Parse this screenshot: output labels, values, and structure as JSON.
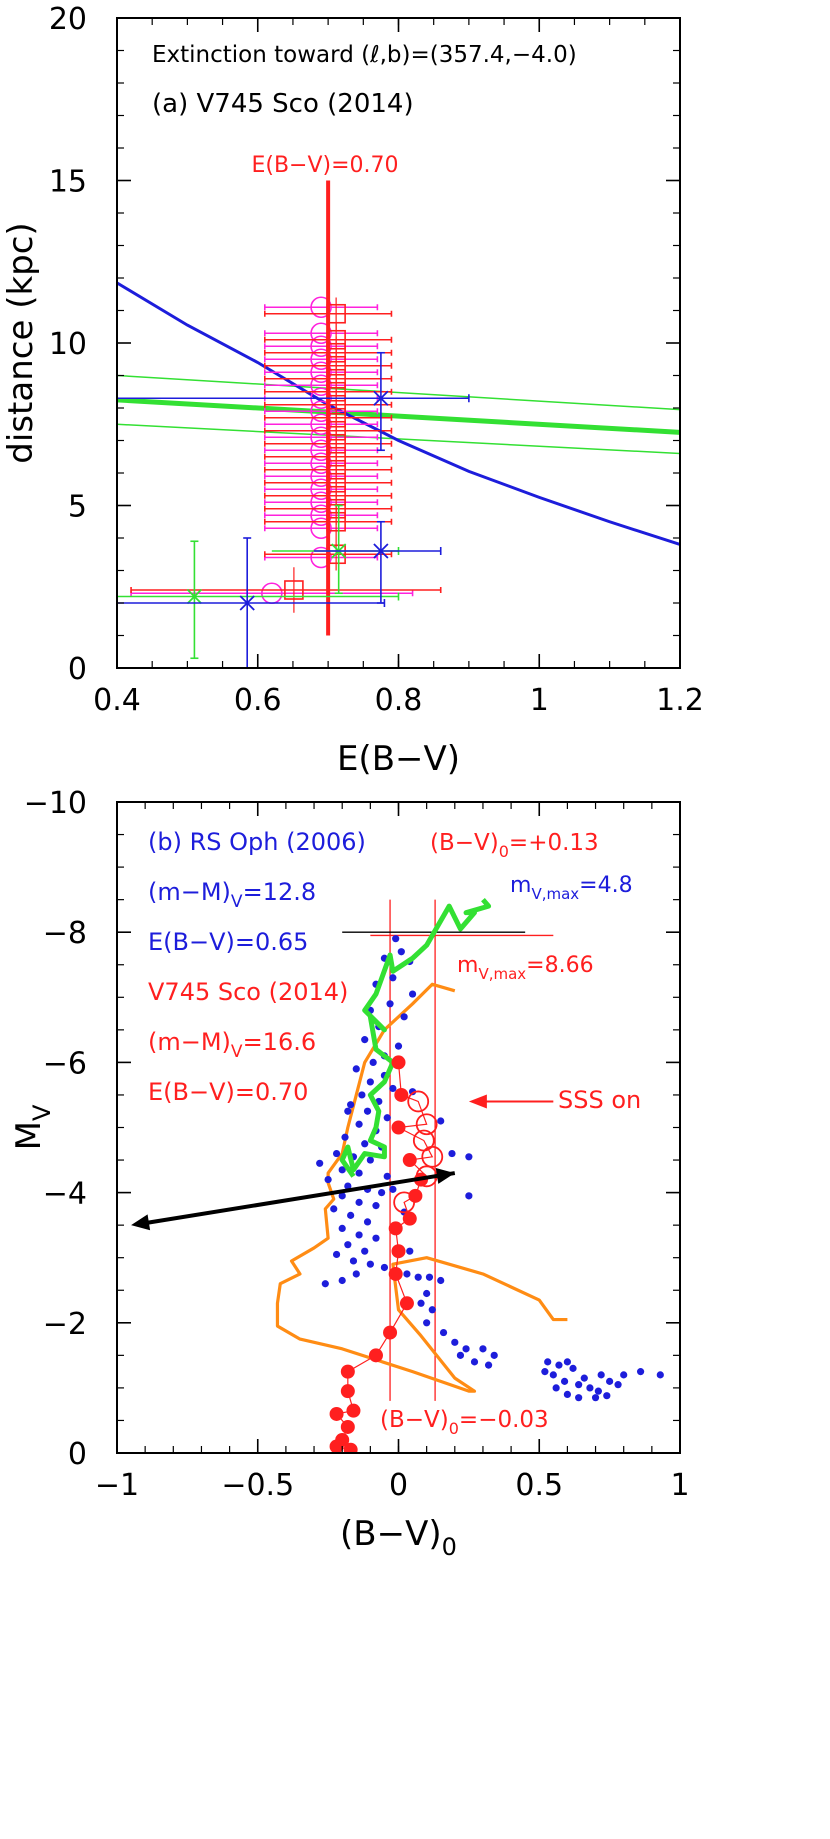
{
  "colors": {
    "red": "#ff1f1f",
    "blue": "#1d1ddb",
    "green": "#33e033",
    "magenta": "#ff22dd",
    "orange": "#ff8c14",
    "black": "#000000"
  },
  "chart_data": [
    {
      "type": "scatter",
      "panel": "top",
      "title": "Extinction toward (ℓ,b)=(357.4,−4.0)",
      "subtitle": "(a) V745 Sco (2014)",
      "xlabel": "E(B−V)",
      "ylabel": "distance (kpc)",
      "xlim": [
        0.4,
        1.2
      ],
      "ylim": [
        0,
        20
      ],
      "xticks": [
        "0.4",
        "0.6",
        "0.8",
        "1",
        "1.2"
      ],
      "xtick_values": [
        0.4,
        0.6,
        0.8,
        1.0,
        1.2
      ],
      "yticks": [
        "0",
        "5",
        "10",
        "15",
        "20"
      ],
      "ytick_values": [
        0,
        5,
        10,
        15,
        20
      ],
      "annotations": {
        "ebv_label": "E(B−V)=0.70"
      },
      "vertical_line": {
        "x": 0.7,
        "y": [
          1.0,
          15.0
        ],
        "color": "red"
      },
      "blue_curve": [
        [
          0.4,
          11.85
        ],
        [
          0.5,
          10.55
        ],
        [
          0.6,
          9.4
        ],
        [
          0.7,
          8.1
        ],
        [
          0.8,
          7.0
        ],
        [
          0.9,
          6.05
        ],
        [
          1.0,
          5.25
        ],
        [
          1.1,
          4.5
        ],
        [
          1.2,
          3.8
        ]
      ],
      "green_lines": [
        {
          "role": "center",
          "y_at_x0": 8.25,
          "y_at_x1": 7.25
        },
        {
          "role": "upper",
          "y_at_x0": 9.0,
          "y_at_x1": 7.95
        },
        {
          "role": "lower",
          "y_at_x0": 7.5,
          "y_at_x1": 6.6
        }
      ],
      "magenta_circles": [
        {
          "x": 0.69,
          "y": 11.1,
          "xerr": 0.08
        },
        {
          "x": 0.69,
          "y": 10.3,
          "xerr": 0.08
        },
        {
          "x": 0.69,
          "y": 9.9,
          "xerr": 0.08
        },
        {
          "x": 0.69,
          "y": 9.5,
          "xerr": 0.08
        },
        {
          "x": 0.69,
          "y": 9.1,
          "xerr": 0.08
        },
        {
          "x": 0.69,
          "y": 8.7,
          "xerr": 0.08
        },
        {
          "x": 0.69,
          "y": 8.3,
          "xerr": 0.08
        },
        {
          "x": 0.69,
          "y": 7.9,
          "xerr": 0.08
        },
        {
          "x": 0.69,
          "y": 7.5,
          "xerr": 0.08
        },
        {
          "x": 0.69,
          "y": 7.1,
          "xerr": 0.08
        },
        {
          "x": 0.69,
          "y": 6.7,
          "xerr": 0.08
        },
        {
          "x": 0.69,
          "y": 6.3,
          "xerr": 0.08
        },
        {
          "x": 0.69,
          "y": 5.9,
          "xerr": 0.08
        },
        {
          "x": 0.69,
          "y": 5.5,
          "xerr": 0.08
        },
        {
          "x": 0.69,
          "y": 5.1,
          "xerr": 0.08
        },
        {
          "x": 0.69,
          "y": 4.7,
          "xerr": 0.08
        },
        {
          "x": 0.69,
          "y": 4.3,
          "xerr": 0.08
        },
        {
          "x": 0.69,
          "y": 3.4,
          "xerr": 0.08
        },
        {
          "x": 0.62,
          "y": 2.3,
          "xerr": 0.2
        }
      ],
      "red_squares": [
        {
          "x": 0.7,
          "y": 10.9,
          "xerr": 0.09,
          "yerr": 0.5
        },
        {
          "x": 0.7,
          "y": 10.1,
          "xerr": 0.09,
          "yerr": 0.5
        },
        {
          "x": 0.7,
          "y": 9.7,
          "xerr": 0.09,
          "yerr": 0.5
        },
        {
          "x": 0.7,
          "y": 9.3,
          "xerr": 0.09,
          "yerr": 0.5
        },
        {
          "x": 0.7,
          "y": 8.9,
          "xerr": 0.09,
          "yerr": 0.5
        },
        {
          "x": 0.7,
          "y": 8.5,
          "xerr": 0.09,
          "yerr": 0.5
        },
        {
          "x": 0.7,
          "y": 8.1,
          "xerr": 0.09,
          "yerr": 0.5
        },
        {
          "x": 0.7,
          "y": 7.7,
          "xerr": 0.09,
          "yerr": 0.5
        },
        {
          "x": 0.7,
          "y": 7.3,
          "xerr": 0.09,
          "yerr": 0.5
        },
        {
          "x": 0.7,
          "y": 6.9,
          "xerr": 0.09,
          "yerr": 0.5
        },
        {
          "x": 0.7,
          "y": 6.5,
          "xerr": 0.09,
          "yerr": 0.5
        },
        {
          "x": 0.7,
          "y": 6.1,
          "xerr": 0.09,
          "yerr": 0.5
        },
        {
          "x": 0.7,
          "y": 5.7,
          "xerr": 0.09,
          "yerr": 0.5
        },
        {
          "x": 0.7,
          "y": 5.3,
          "xerr": 0.09,
          "yerr": 0.5
        },
        {
          "x": 0.7,
          "y": 4.9,
          "xerr": 0.09,
          "yerr": 0.5
        },
        {
          "x": 0.7,
          "y": 4.5,
          "xerr": 0.09,
          "yerr": 0.5
        },
        {
          "x": 0.7,
          "y": 3.5,
          "xerr": 0.09,
          "yerr": 0.5
        },
        {
          "x": 0.64,
          "y": 2.4,
          "xerr": 0.22,
          "yerr": 0.7
        }
      ],
      "blue_crosses": [
        {
          "x": 0.775,
          "y": 8.3,
          "xlo": 0.4,
          "xhi": 0.9,
          "ylo": 6.7,
          "yhi": 9.7
        },
        {
          "x": 0.775,
          "y": 3.6,
          "xlo": 0.68,
          "xhi": 0.86,
          "ylo": 2.0,
          "yhi": 4.5
        },
        {
          "x": 0.585,
          "y": 2.0,
          "xlo": 0.4,
          "xhi": 0.78,
          "ylo": 0.0,
          "yhi": 4.0
        }
      ],
      "green_crosses": [
        {
          "x": 0.715,
          "y": 3.6,
          "xlo": 0.62,
          "xhi": 0.8,
          "ylo": 2.3,
          "yhi": 5.0
        },
        {
          "x": 0.51,
          "y": 2.2,
          "xlo": 0.4,
          "xhi": 0.8,
          "ylo": 0.3,
          "yhi": 3.9
        }
      ]
    },
    {
      "type": "scatter",
      "panel": "bottom",
      "xlabel": "(B−V)",
      "xlabel_sub": "0",
      "ylabel": "M",
      "ylabel_sub": "V",
      "xlim": [
        -1,
        1
      ],
      "ylim": [
        0,
        -10
      ],
      "xticks": [
        "−1",
        "−0.5",
        "0",
        "0.5",
        "1"
      ],
      "xtick_values": [
        -1,
        -0.5,
        0,
        0.5,
        1
      ],
      "yticks": [
        "−10",
        "−8",
        "−6",
        "−4",
        "−2",
        "0"
      ],
      "ytick_values": [
        -10,
        -8,
        -6,
        -4,
        -2,
        0
      ],
      "annotations": {
        "rsoph_title": "(b) RS Oph (2006)",
        "rsoph_dm": "(m−M)",
        "rsoph_dm_sub": "V",
        "rsoph_dm_val": "=12.8",
        "rsoph_ebv": "E(B−V)=0.65",
        "v745_title": "V745 Sco (2014)",
        "v745_dm": "(m−M)",
        "v745_dm_sub": "V",
        "v745_dm_val": "=16.6",
        "v745_ebv": "E(B−V)=0.70",
        "bv_top": "(B−V)",
        "bv_top_sub": "0",
        "bv_top_val": "=+0.13",
        "bv_bot": "(B−V)",
        "bv_bot_sub": "0",
        "bv_bot_val": "=−0.03",
        "mvmax_blue": "m",
        "mvmax_blue_sub": "V,max",
        "mvmax_blue_val": "=4.8",
        "mvmax_red": "m",
        "mvmax_red_sub": "V,max",
        "mvmax_red_val": "=8.66",
        "sss": "SSS on"
      },
      "vlines": [
        -0.03,
        0.13
      ],
      "hlines": [
        {
          "y": -8.0,
          "x": [
            -0.2,
            0.45
          ],
          "color": "black"
        },
        {
          "y": -7.95,
          "x": [
            -0.1,
            0.55
          ],
          "color": "red"
        }
      ],
      "arrow": {
        "from": [
          0.2,
          -4.3
        ],
        "to": [
          -0.95,
          -3.5
        ]
      },
      "sss_arrow": {
        "from": [
          0.55,
          -5.4
        ],
        "to": [
          0.25,
          -5.4
        ]
      },
      "orange_track": [
        [
          0.2,
          -7.1
        ],
        [
          0.12,
          -7.2
        ],
        [
          0.05,
          -6.9
        ],
        [
          -0.05,
          -6.5
        ],
        [
          -0.12,
          -6.0
        ],
        [
          -0.15,
          -5.5
        ],
        [
          -0.18,
          -5.0
        ],
        [
          -0.2,
          -4.6
        ],
        [
          -0.25,
          -4.3
        ],
        [
          -0.25,
          -4.15
        ],
        [
          -0.23,
          -3.9
        ],
        [
          -0.26,
          -3.75
        ],
        [
          -0.25,
          -3.3
        ],
        [
          -0.3,
          -3.15
        ],
        [
          -0.38,
          -2.95
        ],
        [
          -0.35,
          -2.75
        ],
        [
          -0.42,
          -2.6
        ],
        [
          -0.43,
          -2.3
        ],
        [
          -0.43,
          -1.95
        ],
        [
          -0.35,
          -1.75
        ],
        [
          -0.2,
          -1.6
        ],
        [
          0.05,
          -1.25
        ],
        [
          0.25,
          -0.95
        ],
        [
          0.27,
          -0.95
        ],
        [
          0.2,
          -1.15
        ],
        [
          0.08,
          -1.8
        ],
        [
          0.0,
          -2.2
        ],
        [
          -0.02,
          -2.9
        ],
        [
          0.1,
          -3.0
        ],
        [
          0.3,
          -2.75
        ],
        [
          0.5,
          -2.35
        ],
        [
          0.55,
          -2.05
        ],
        [
          0.6,
          -2.05
        ]
      ],
      "green_track": [
        [
          0.3,
          -8.5
        ],
        [
          0.32,
          -8.4
        ],
        [
          0.24,
          -8.3
        ],
        [
          0.27,
          -8.3
        ],
        [
          0.22,
          -8.05
        ],
        [
          0.18,
          -8.4
        ],
        [
          0.1,
          -7.8
        ],
        [
          0.05,
          -7.6
        ],
        [
          -0.02,
          -7.4
        ],
        [
          -0.03,
          -7.65
        ],
        [
          -0.08,
          -7.05
        ],
        [
          -0.12,
          -6.8
        ],
        [
          -0.05,
          -6.5
        ],
        [
          -0.1,
          -6.7
        ],
        [
          -0.08,
          -6.2
        ],
        [
          -0.02,
          -6.0
        ],
        [
          -0.05,
          -5.7
        ],
        [
          -0.1,
          -5.5
        ],
        [
          -0.07,
          -5.25
        ],
        [
          -0.08,
          -5.0
        ],
        [
          -0.1,
          -4.8
        ],
        [
          -0.05,
          -4.7
        ],
        [
          -0.05,
          -4.55
        ],
        [
          -0.12,
          -4.6
        ],
        [
          -0.16,
          -4.35
        ],
        [
          -0.18,
          -4.7
        ],
        [
          -0.2,
          -4.5
        ],
        [
          -0.16,
          -4.25
        ]
      ],
      "blue_points": [
        [
          -0.01,
          -7.9
        ],
        [
          0.01,
          -7.7
        ],
        [
          -0.05,
          -7.6
        ],
        [
          0.04,
          -7.55
        ],
        [
          -0.02,
          -7.3
        ],
        [
          -0.08,
          -7.2
        ],
        [
          0.05,
          -7.05
        ],
        [
          -0.03,
          -6.9
        ],
        [
          -0.1,
          -6.8
        ],
        [
          0.02,
          -6.7
        ],
        [
          -0.07,
          -6.55
        ],
        [
          -0.12,
          -6.35
        ],
        [
          0.0,
          -6.25
        ],
        [
          -0.05,
          -6.1
        ],
        [
          -0.09,
          -6.0
        ],
        [
          -0.15,
          -5.9
        ],
        [
          -0.05,
          -5.8
        ],
        [
          -0.1,
          -5.7
        ],
        [
          -0.02,
          -5.6
        ],
        [
          -0.13,
          -5.5
        ],
        [
          -0.07,
          -5.4
        ],
        [
          -0.17,
          -5.35
        ],
        [
          -0.11,
          -5.25
        ],
        [
          -0.04,
          -5.15
        ],
        [
          -0.14,
          -5.05
        ],
        [
          -0.08,
          -4.95
        ],
        [
          -0.19,
          -4.85
        ],
        [
          -0.12,
          -4.75
        ],
        [
          -0.06,
          -4.7
        ],
        [
          -0.22,
          -4.6
        ],
        [
          -0.16,
          -4.55
        ],
        [
          -0.1,
          -4.5
        ],
        [
          -0.28,
          -4.45
        ],
        [
          -0.2,
          -4.35
        ],
        [
          -0.14,
          -4.3
        ],
        [
          -0.04,
          -4.25
        ],
        [
          -0.25,
          -4.2
        ],
        [
          -0.18,
          -4.1
        ],
        [
          -0.11,
          -4.05
        ],
        [
          -0.06,
          -4.0
        ],
        [
          -0.2,
          -3.95
        ],
        [
          -0.14,
          -3.85
        ],
        [
          -0.08,
          -3.8
        ],
        [
          -0.23,
          -3.75
        ],
        [
          -0.17,
          -3.65
        ],
        [
          -0.11,
          -3.55
        ],
        [
          -0.2,
          -3.45
        ],
        [
          -0.14,
          -3.35
        ],
        [
          -0.08,
          -3.3
        ],
        [
          -0.18,
          -3.2
        ],
        [
          -0.12,
          -3.1
        ],
        [
          -0.22,
          -3.05
        ],
        [
          -0.16,
          -2.95
        ],
        [
          -0.1,
          -2.9
        ],
        [
          -0.05,
          -2.85
        ],
        [
          -0.01,
          -2.8
        ],
        [
          0.03,
          -2.75
        ],
        [
          0.07,
          -2.7
        ],
        [
          0.11,
          -2.7
        ],
        [
          0.15,
          -2.65
        ],
        [
          -0.15,
          -2.75
        ],
        [
          -0.2,
          -2.65
        ],
        [
          -0.26,
          -2.6
        ],
        [
          0.1,
          -2.45
        ],
        [
          0.08,
          -2.3
        ],
        [
          0.12,
          -2.2
        ],
        [
          0.1,
          -2.0
        ],
        [
          0.16,
          -1.85
        ],
        [
          0.2,
          -1.7
        ],
        [
          0.24,
          -1.6
        ],
        [
          0.3,
          -1.6
        ],
        [
          0.34,
          -1.5
        ],
        [
          0.22,
          -1.5
        ],
        [
          0.27,
          -1.4
        ],
        [
          0.32,
          -1.35
        ],
        [
          0.53,
          -1.4
        ],
        [
          0.57,
          -1.35
        ],
        [
          0.6,
          -1.4
        ],
        [
          0.62,
          -1.3
        ],
        [
          0.52,
          -1.25
        ],
        [
          0.55,
          -1.2
        ],
        [
          0.59,
          -1.1
        ],
        [
          0.64,
          -1.05
        ],
        [
          0.68,
          -1.0
        ],
        [
          0.71,
          -0.95
        ],
        [
          0.75,
          -1.1
        ],
        [
          0.8,
          -1.2
        ],
        [
          0.86,
          -1.25
        ],
        [
          0.93,
          -1.2
        ],
        [
          0.56,
          -1.0
        ],
        [
          0.6,
          -0.9
        ],
        [
          0.64,
          -0.85
        ],
        [
          0.7,
          -0.85
        ],
        [
          0.74,
          -0.88
        ],
        [
          0.78,
          -1.05
        ],
        [
          0.66,
          -1.15
        ],
        [
          0.72,
          -1.2
        ],
        [
          0.25,
          -4.55
        ],
        [
          0.25,
          -3.95
        ],
        [
          0.05,
          -5.55
        ],
        [
          0.15,
          -5.1
        ],
        [
          0.19,
          -4.6
        ],
        [
          -0.18,
          -5.25
        ],
        [
          -0.02,
          -4.05
        ],
        [
          0.02,
          -3.7
        ],
        [
          0.04,
          -3.1
        ]
      ],
      "red_filled": [
        [
          0.0,
          -6.0
        ],
        [
          0.01,
          -5.5
        ],
        [
          0.0,
          -5.0
        ],
        [
          0.04,
          -4.5
        ],
        [
          0.08,
          -4.2
        ],
        [
          0.06,
          -3.95
        ],
        [
          0.04,
          -3.6
        ],
        [
          -0.01,
          -3.45
        ],
        [
          0.0,
          -3.1
        ],
        [
          -0.01,
          -2.75
        ],
        [
          0.03,
          -2.3
        ],
        [
          -0.03,
          -1.85
        ],
        [
          -0.08,
          -1.5
        ],
        [
          -0.18,
          -1.25
        ],
        [
          -0.18,
          -0.95
        ],
        [
          -0.16,
          -0.65
        ],
        [
          -0.22,
          -0.6
        ],
        [
          -0.18,
          -0.4
        ],
        [
          -0.2,
          -0.2
        ],
        [
          -0.22,
          -0.1
        ],
        [
          -0.17,
          -0.05
        ]
      ],
      "red_open": [
        [
          0.07,
          -5.4
        ],
        [
          0.1,
          -5.05
        ],
        [
          0.09,
          -4.8
        ],
        [
          0.12,
          -4.55
        ],
        [
          0.1,
          -4.25
        ],
        [
          0.02,
          -3.85
        ]
      ]
    }
  ]
}
